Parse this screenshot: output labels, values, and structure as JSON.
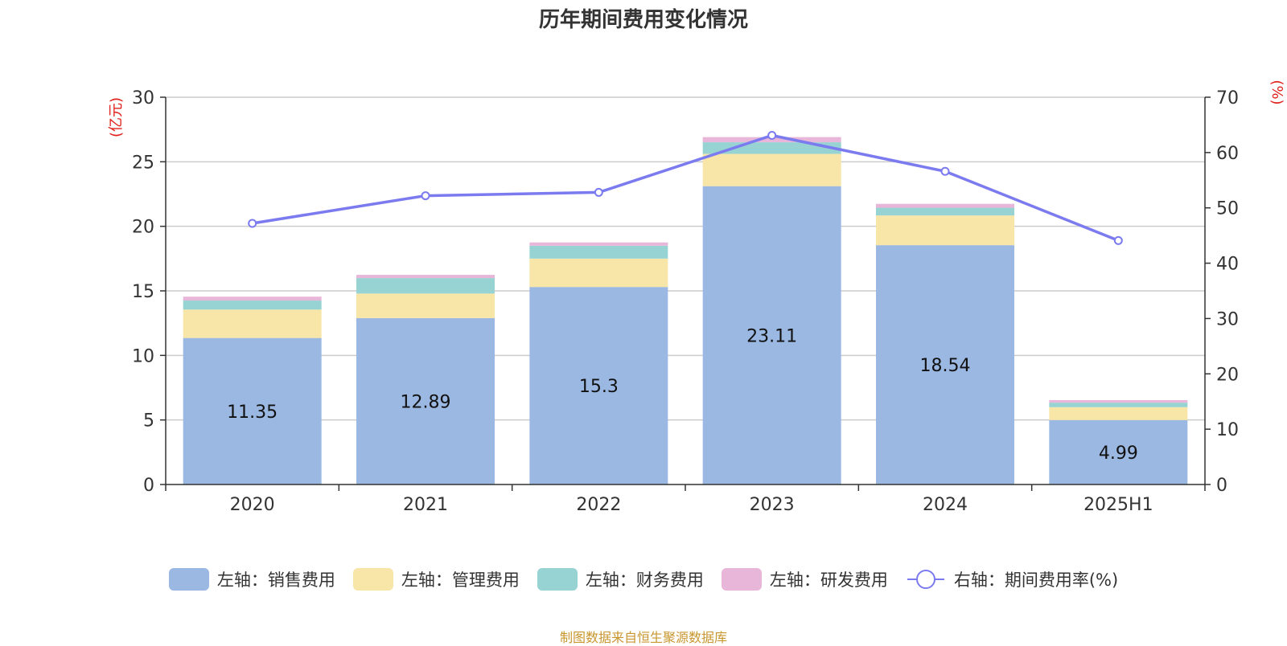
{
  "source_note": "制图数据来自恒生聚源数据库",
  "chart_data": {
    "type": "bar",
    "title": "历年期间费用变化情况",
    "categories": [
      "2020",
      "2021",
      "2022",
      "2023",
      "2024",
      "2025H1"
    ],
    "left_axis": {
      "label": "(亿元)",
      "min": 0,
      "max": 30,
      "ticks": [
        0,
        5,
        10,
        15,
        20,
        25,
        30
      ]
    },
    "right_axis": {
      "label": "(%)",
      "min": 0,
      "max": 70,
      "ticks": [
        0,
        10,
        20,
        30,
        40,
        50,
        60,
        70
      ]
    },
    "grid": true,
    "legend_position": "bottom",
    "series": [
      {
        "name": "左轴：销售费用",
        "type": "bar",
        "color": "#9bb8e2",
        "show_labels": true,
        "values": [
          11.35,
          12.89,
          15.3,
          23.11,
          18.54,
          4.99
        ]
      },
      {
        "name": "左轴：管理费用",
        "type": "bar",
        "color": "#f8e6a8",
        "show_labels": false,
        "values": [
          2.2,
          1.9,
          2.2,
          2.5,
          2.3,
          1.0
        ]
      },
      {
        "name": "左轴：财务费用",
        "type": "bar",
        "color": "#96d3d2",
        "show_labels": false,
        "values": [
          0.7,
          1.2,
          1.0,
          0.9,
          0.6,
          0.35
        ]
      },
      {
        "name": "左轴：研发费用",
        "type": "bar",
        "color": "#e8b6d8",
        "show_labels": false,
        "values": [
          0.3,
          0.25,
          0.25,
          0.4,
          0.3,
          0.2
        ]
      },
      {
        "name": "右轴：期间费用率(%)",
        "type": "line",
        "axis": "right",
        "color": "#7b7bef",
        "values": [
          47.2,
          52.2,
          52.8,
          63.1,
          56.6,
          44.1
        ]
      }
    ]
  }
}
